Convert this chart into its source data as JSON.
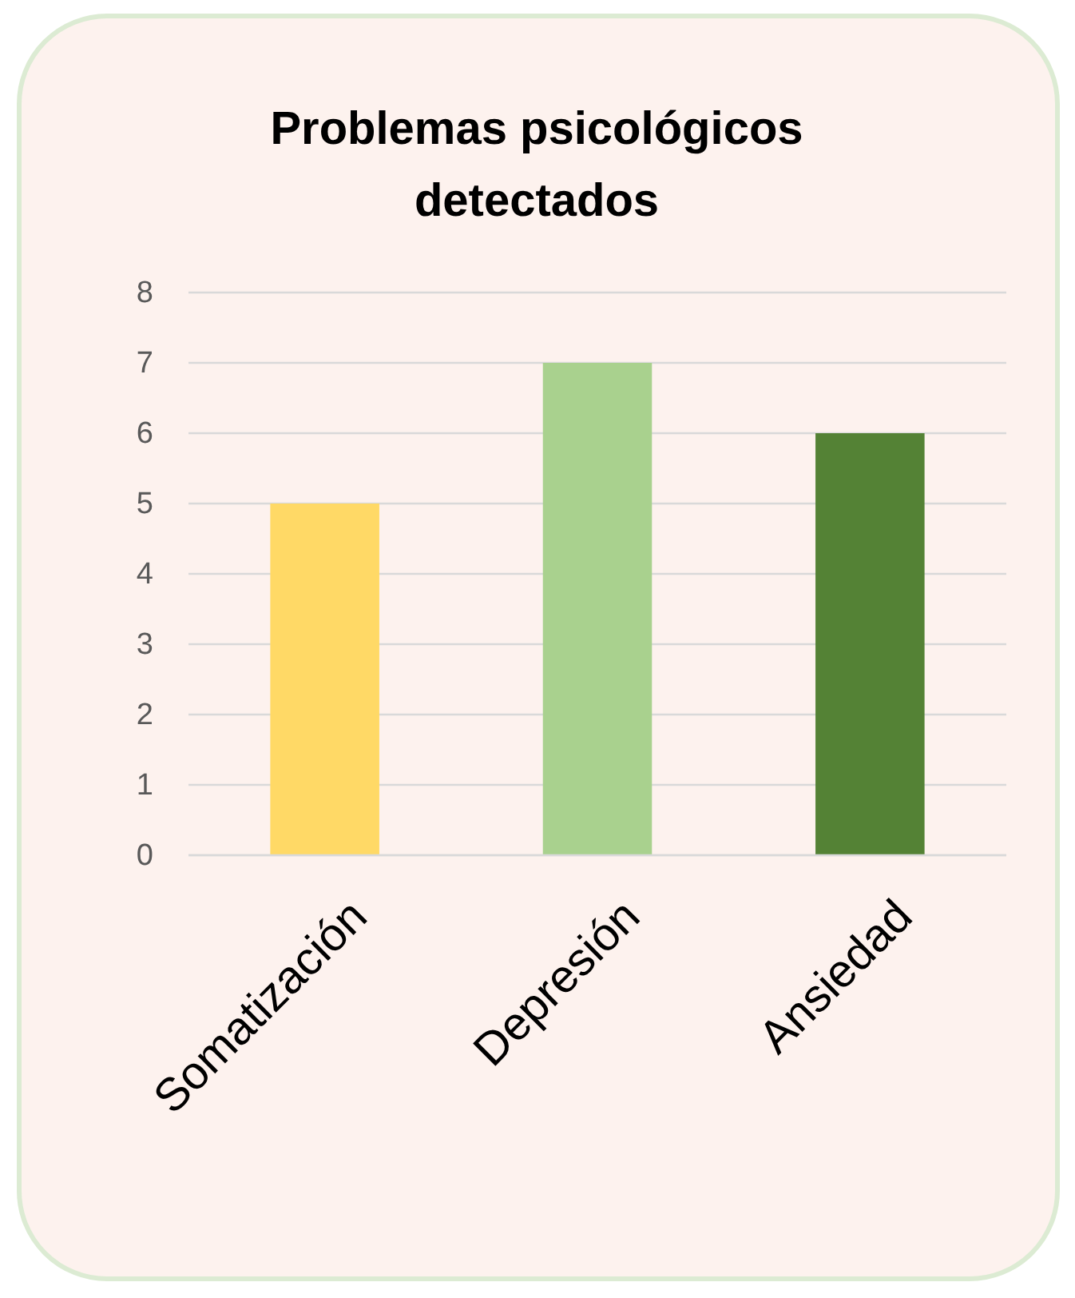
{
  "chart_data": {
    "type": "bar",
    "title": "Problemas psicológicos detectados",
    "categories": [
      "Somatización",
      "Depresión",
      "Ansiedad"
    ],
    "values": [
      5,
      7,
      6
    ],
    "colors": [
      "#ffd966",
      "#a9d18e",
      "#548235"
    ],
    "ylim": [
      0,
      8
    ],
    "yticks": [
      0,
      1,
      2,
      3,
      4,
      5,
      6,
      7,
      8
    ],
    "grid": "y"
  }
}
